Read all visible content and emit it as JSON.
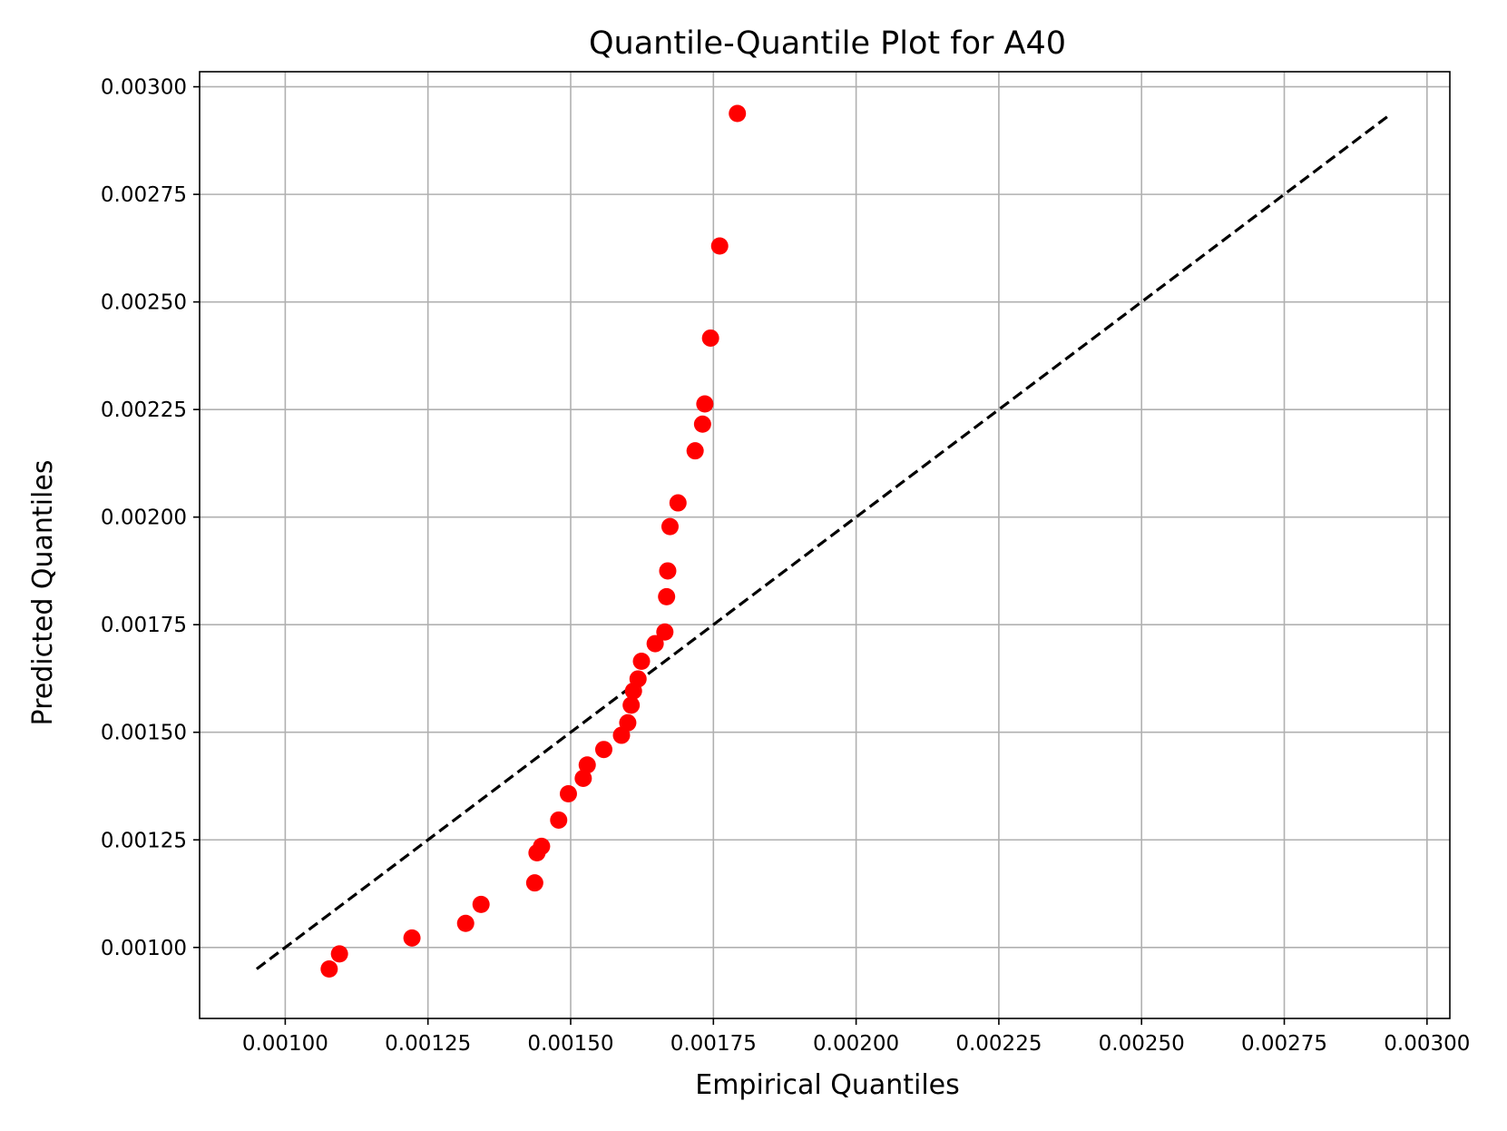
{
  "chart_data": {
    "type": "scatter",
    "title": "Quantile-Quantile Plot for A40",
    "xlabel": "Empirical Quantiles",
    "ylabel": "Predicted Quantiles",
    "xlim": [
      0.00085,
      0.00304
    ],
    "ylim": [
      0.000835,
      0.003035
    ],
    "grid": true,
    "x_ticks": [
      0.001,
      0.00125,
      0.0015,
      0.00175,
      0.002,
      0.00225,
      0.0025,
      0.00275,
      0.003
    ],
    "x_tick_labels": [
      "0.00100",
      "0.00125",
      "0.00150",
      "0.00175",
      "0.00200",
      "0.00225",
      "0.00250",
      "0.00275",
      "0.00300"
    ],
    "y_ticks": [
      0.001,
      0.00125,
      0.0015,
      0.00175,
      0.002,
      0.00225,
      0.0025,
      0.00275,
      0.003
    ],
    "y_tick_labels": [
      "0.00100",
      "0.00125",
      "0.00150",
      "0.00175",
      "0.00200",
      "0.00225",
      "0.00250",
      "0.00275",
      "0.00300"
    ],
    "reference_line": {
      "style": "dashed",
      "color": "#000000",
      "x": [
        0.00095,
        0.002935
      ],
      "y": [
        0.00095,
        0.002935
      ]
    },
    "series": [
      {
        "marker_color": "#ff0000",
        "points": [
          [
            0.001077,
            0.00095
          ],
          [
            0.001095,
            0.000985
          ],
          [
            0.001222,
            0.001022
          ],
          [
            0.001316,
            0.001056
          ],
          [
            0.001343,
            0.0011
          ],
          [
            0.001437,
            0.00115
          ],
          [
            0.001441,
            0.00122
          ],
          [
            0.001449,
            0.001235
          ],
          [
            0.001479,
            0.001296
          ],
          [
            0.001496,
            0.001357
          ],
          [
            0.001522,
            0.001393
          ],
          [
            0.001529,
            0.001424
          ],
          [
            0.001558,
            0.00146
          ],
          [
            0.001589,
            0.001493
          ],
          [
            0.0016,
            0.001522
          ],
          [
            0.001606,
            0.001563
          ],
          [
            0.00161,
            0.001596
          ],
          [
            0.001618,
            0.001624
          ],
          [
            0.001624,
            0.001665
          ],
          [
            0.001648,
            0.001706
          ],
          [
            0.001665,
            0.001733
          ],
          [
            0.001668,
            0.001815
          ],
          [
            0.00167,
            0.001875
          ],
          [
            0.001674,
            0.001978
          ],
          [
            0.001688,
            0.002033
          ],
          [
            0.001718,
            0.002154
          ],
          [
            0.001731,
            0.002216
          ],
          [
            0.001735,
            0.002263
          ],
          [
            0.001745,
            0.002416
          ],
          [
            0.001761,
            0.00263
          ],
          [
            0.001792,
            0.002938
          ]
        ]
      }
    ]
  }
}
